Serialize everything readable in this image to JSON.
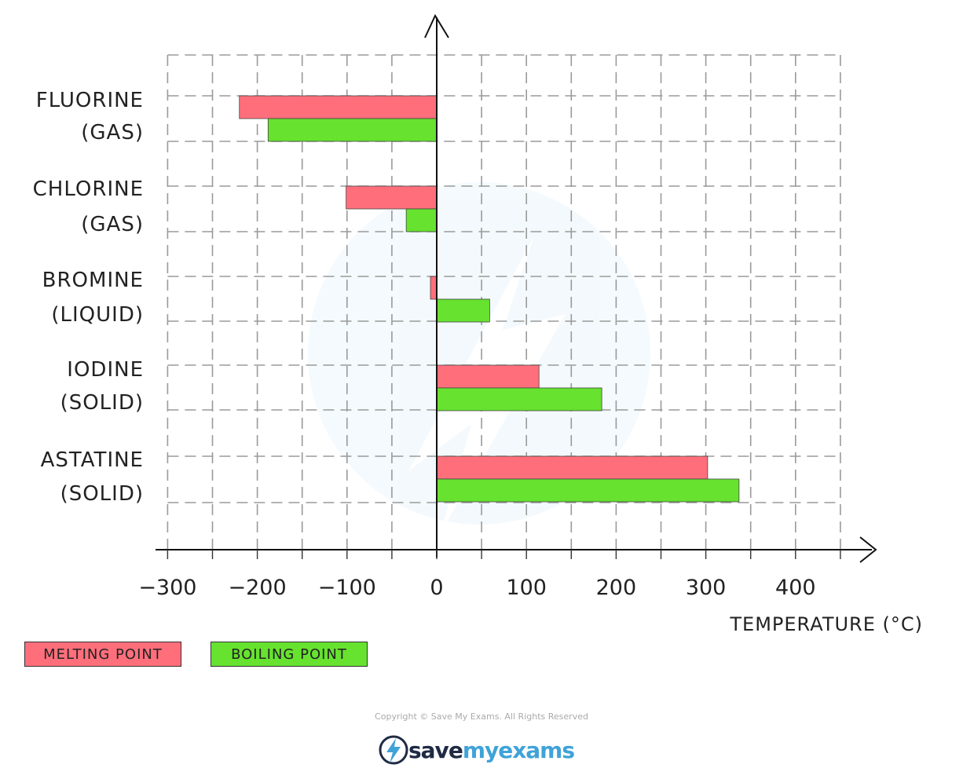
{
  "chart_data": {
    "type": "bar",
    "orientation": "horizontal",
    "categories": [
      [
        "FLUORINE",
        "(GAS)"
      ],
      [
        "CHLORINE",
        "(GAS)"
      ],
      [
        "BROMINE",
        "(LIQUID)"
      ],
      [
        "IODINE",
        "(SOLID)"
      ],
      [
        "ASTATINE",
        "(SOLID)"
      ]
    ],
    "series": [
      {
        "name": "MELTING POINT",
        "color": "#ff6f7b",
        "values": [
          -220,
          -101,
          -7,
          114,
          302
        ]
      },
      {
        "name": "BOILING POINT",
        "color": "#66e22f",
        "values": [
          -188,
          -34,
          59,
          184,
          337
        ]
      }
    ],
    "xlabel": "TEMPERATURE (°C)",
    "xticks": [
      "-300",
      "-200",
      "-100",
      "0",
      "100",
      "200",
      "300",
      "400"
    ],
    "xlim": [
      -300,
      450
    ],
    "grid": true,
    "grid_style": "dashed",
    "legend_position": "bottom-left"
  },
  "copyright": "Copyright © Save My Exams. All Rights Reserved",
  "brand": {
    "save": "save",
    "rest": "myexams",
    "icon": "lightning-bolt-icon"
  }
}
